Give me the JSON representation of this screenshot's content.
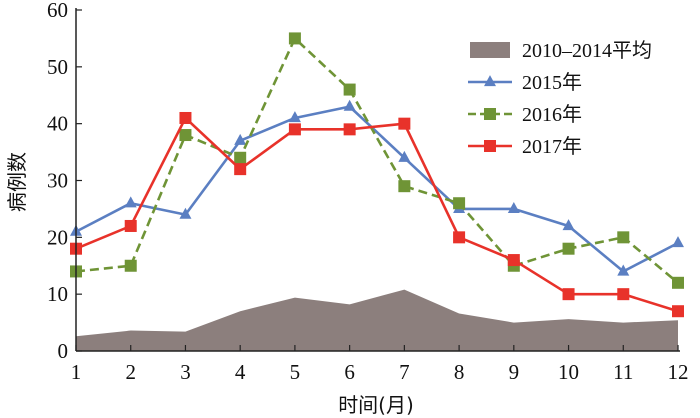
{
  "chart_data": {
    "type": "line",
    "title": "",
    "xlabel": "时间(月)",
    "ylabel": "病例数",
    "x": [
      1,
      2,
      3,
      4,
      5,
      6,
      7,
      8,
      9,
      10,
      11,
      12
    ],
    "xlim": [
      1,
      12
    ],
    "ylim": [
      0,
      60
    ],
    "yticks": [
      0,
      10,
      20,
      30,
      40,
      50,
      60
    ],
    "grid": false,
    "legend_position": "top-right",
    "series": [
      {
        "name": "2010–2014平均",
        "kind": "area",
        "color": "#8c7f7d",
        "values": [
          2.6,
          3.6,
          3.4,
          7,
          9.4,
          8.2,
          10.8,
          6.6,
          5,
          5.6,
          5,
          5.4
        ]
      },
      {
        "name": "2015年",
        "kind": "line",
        "marker": "triangle",
        "color": "#5b7fc2",
        "values": [
          21,
          26,
          24,
          37,
          41,
          43,
          34,
          25,
          25,
          22,
          14,
          19
        ]
      },
      {
        "name": "2016年",
        "kind": "line",
        "marker": "square",
        "dashed": true,
        "color": "#6f9436",
        "values": [
          14,
          15,
          38,
          34,
          55,
          46,
          29,
          26,
          15,
          18,
          20,
          12
        ]
      },
      {
        "name": "2017年",
        "kind": "line",
        "marker": "square",
        "color": "#e8322a",
        "values": [
          18,
          22,
          41,
          32,
          39,
          39,
          40,
          20,
          16,
          10,
          10,
          7
        ]
      }
    ]
  }
}
